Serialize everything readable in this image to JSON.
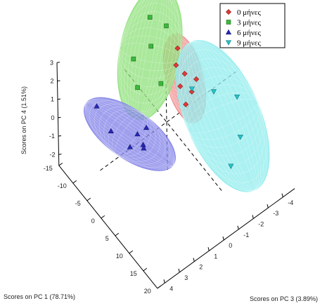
{
  "chart_data": {
    "type": "scatter",
    "projection": "3d",
    "axes": {
      "x": {
        "label": "Scores on PC 3 (3.89%)",
        "ticks": [
          4,
          3,
          2,
          1,
          0,
          -1,
          -2,
          -3,
          -4
        ],
        "range": [
          4.5,
          -4.8
        ]
      },
      "y": {
        "label": "Scores on PC 1 (78.71%)",
        "ticks": [
          -15,
          -10,
          -5,
          0,
          5,
          10,
          15,
          20
        ],
        "range": [
          -15,
          20
        ]
      },
      "z": {
        "label": "Scores on PC 4 (1.51%)",
        "ticks": [
          -2,
          -1,
          0,
          1,
          2,
          3
        ],
        "range": [
          -2.6,
          3
        ]
      }
    },
    "grid": false,
    "legend_position": "top-right",
    "series": [
      {
        "name": "0 μήνες",
        "color": "#e03a3a",
        "marker": "diamond",
        "ellipsoid_color": "#f08a8a",
        "points": [
          [
            -2.2,
            -7.5,
            1.3
          ],
          [
            -1.8,
            -6,
            0.9
          ],
          [
            -2.0,
            -4,
            0.7
          ],
          [
            -1.5,
            -3,
            0.5
          ],
          [
            -2.4,
            -2,
            0.55
          ],
          [
            -1.9,
            -1,
            0.35
          ],
          [
            -1.3,
            0,
            0.2
          ]
        ]
      },
      {
        "name": "3 μήνες",
        "color": "#3cb83c",
        "marker": "square",
        "ellipsoid_color": "#8ee07a",
        "points": [
          [
            -1.4,
            -13,
            2.4
          ],
          [
            -2.3,
            -12,
            1.6
          ],
          [
            -0.7,
            -9,
            2.0
          ],
          [
            -0.4,
            -4,
            1.1
          ],
          [
            0.3,
            -10,
            1.7
          ],
          [
            0.8,
            -6,
            1.2
          ]
        ]
      },
      {
        "name": "6 μήνες",
        "color": "#2828b8",
        "marker": "triangle-up",
        "ellipsoid_color": "#7f7fe8",
        "points": [
          [
            3.0,
            -9,
            0.9
          ],
          [
            3.0,
            -4,
            0.5
          ],
          [
            2.3,
            -1,
            -0.2
          ],
          [
            1.6,
            -2,
            -0.1
          ],
          [
            1.0,
            -2,
            -0.1
          ],
          [
            1.6,
            0,
            -0.3
          ],
          [
            1.2,
            -2,
            -1.1
          ]
        ]
      },
      {
        "name": "9 μήνες",
        "color": "#25c3c8",
        "marker": "triangle-down",
        "ellipsoid_color": "#8fecee",
        "points": [
          [
            -1.3,
            16,
            -0.1
          ],
          [
            -2.7,
            12,
            -0.1
          ],
          [
            -4.0,
            4,
            -0.2
          ],
          [
            -3.0,
            1,
            0.1
          ],
          [
            -2.1,
            -2,
            0.2
          ]
        ]
      }
    ]
  }
}
